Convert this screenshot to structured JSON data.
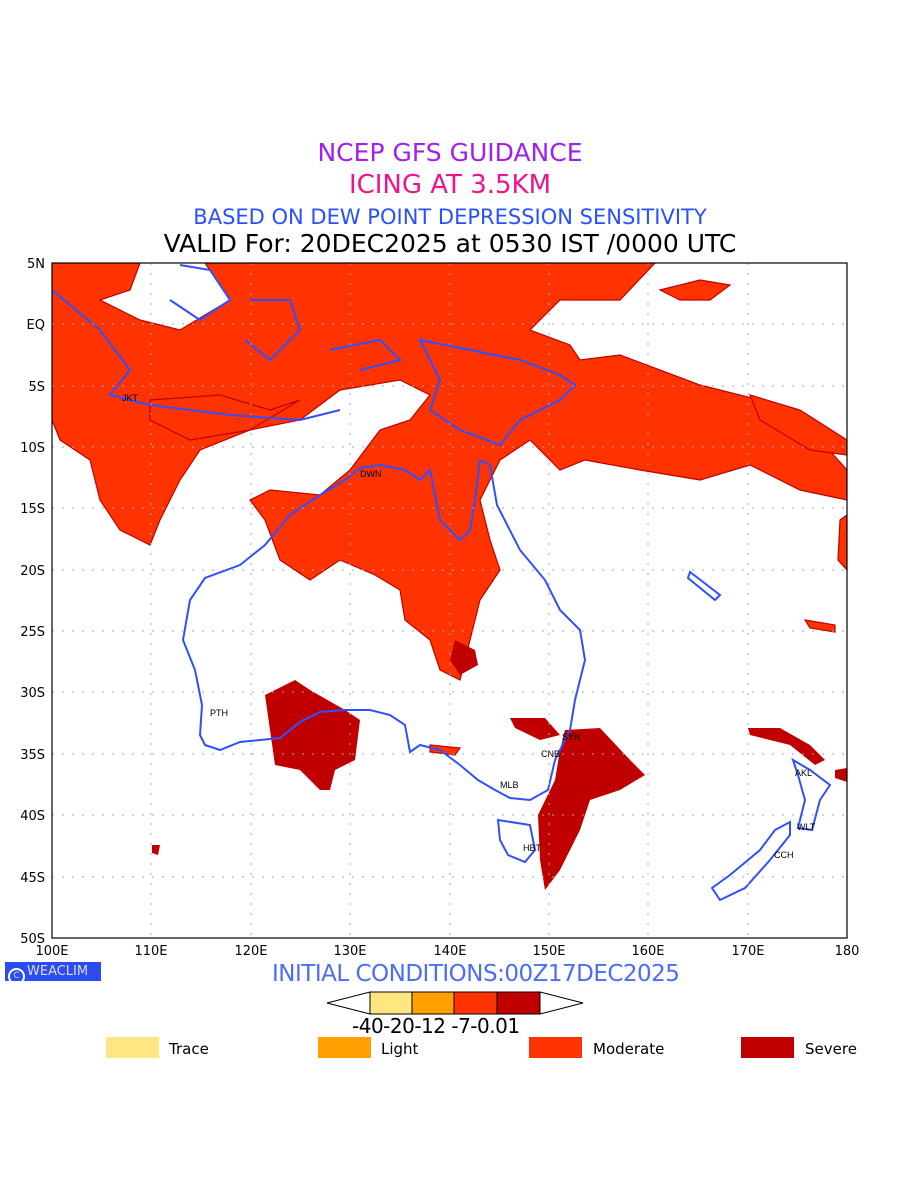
{
  "titles": {
    "line1": "NCEP GFS GUIDANCE",
    "line2": "ICING AT 3.5KM",
    "line3": "BASED ON DEW POINT DEPRESSION SENSITIVITY",
    "line4": "VALID For: 20DEC2025 at 0530 IST /0000 UTC"
  },
  "axes": {
    "lat_labels": [
      "5N",
      "EQ",
      "5S",
      "10S",
      "15S",
      "20S",
      "25S",
      "30S",
      "35S",
      "40S",
      "45S",
      "50S"
    ],
    "lon_labels": [
      "100E",
      "110E",
      "120E",
      "130E",
      "140E",
      "150E",
      "160E",
      "170E",
      "180"
    ]
  },
  "cities": [
    "JKT",
    "DWN",
    "PTH",
    "SYN",
    "CNB",
    "MLB",
    "HBT",
    "AKL",
    "WLT",
    "CCH"
  ],
  "footer": {
    "logo": "WEACLIM",
    "logo_icon": "copyright-icon",
    "initial_conditions": "INITIAL CONDITIONS:00Z17DEC2025"
  },
  "colorbar": {
    "ticks": "-40-20-12 -7-0.01",
    "colors": [
      "#ffe680",
      "#ff9f00",
      "#ff3300",
      "#c00000"
    ]
  },
  "legend": [
    {
      "label": "Trace",
      "color": "#ffe680"
    },
    {
      "label": "Light",
      "color": "#ff9f00"
    },
    {
      "label": "Moderate",
      "color": "#ff3300"
    },
    {
      "label": "Severe",
      "color": "#c00000"
    }
  ],
  "colors": {
    "coast": "#3050ff",
    "grid": "#aaaaaa"
  }
}
